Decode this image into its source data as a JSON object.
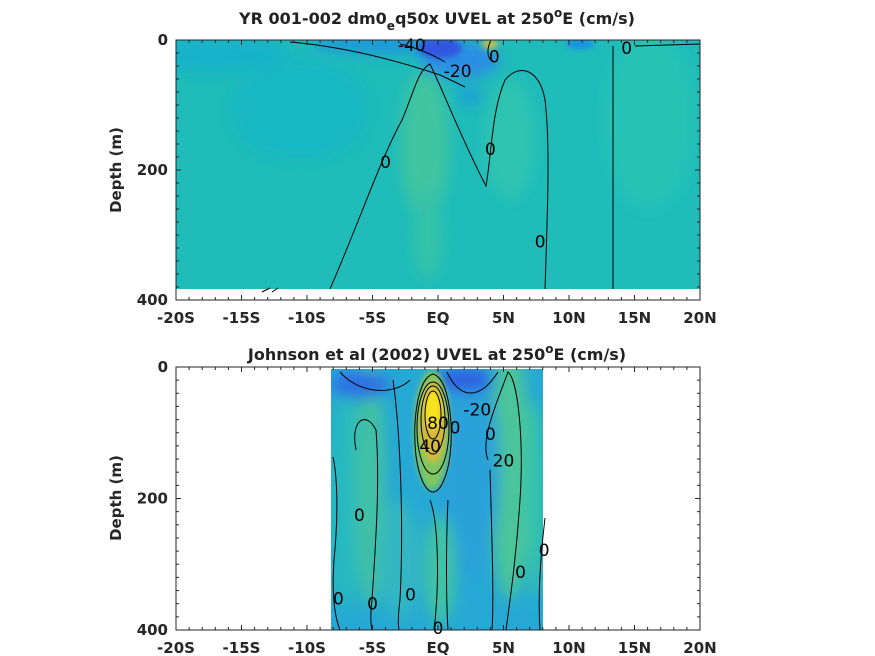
{
  "chart_data": [
    {
      "type": "heatmap",
      "title": {
        "pre": "YR 001-002 dm0",
        "sub": "e",
        "mid": "q50x UVEL at 250",
        "sup": "o",
        "post": "E (cm/s)"
      },
      "ylabel": "Depth (m)",
      "x_ticks": [
        "-20S",
        "-15S",
        "-10S",
        "-5S",
        "EQ",
        "5N",
        "10N",
        "15N",
        "20N"
      ],
      "x_tick_values": [
        -20,
        -15,
        -10,
        -5,
        0,
        5,
        10,
        15,
        20
      ],
      "y_ticks": [
        "0",
        "200",
        "400"
      ],
      "y_tick_values": [
        0,
        200,
        400
      ],
      "xlim": [
        -20,
        20
      ],
      "ylim": [
        0,
        400
      ],
      "y_reversed": true,
      "colormap": "parula",
      "color_range": [
        -60,
        90
      ],
      "data_extent": {
        "x": [
          -20,
          20
        ],
        "y": [
          0,
          380
        ]
      },
      "contour_labels": [
        {
          "text": "-40",
          "x": -2.0,
          "y": 8
        },
        {
          "text": "-20",
          "x": 1.5,
          "y": 48
        },
        {
          "text": "0",
          "x": 4.3,
          "y": 25
        },
        {
          "text": "0",
          "x": 14.4,
          "y": 12
        },
        {
          "text": "0",
          "x": -4.0,
          "y": 188
        },
        {
          "text": "0",
          "x": 4.0,
          "y": 168
        },
        {
          "text": "0",
          "x": 7.8,
          "y": 310
        }
      ]
    },
    {
      "type": "heatmap",
      "title": {
        "pre": "Johnson et al (2002) UVEL at 250",
        "sup": "o",
        "post": "E (cm/s)"
      },
      "ylabel": "Depth (m)",
      "x_ticks": [
        "-20S",
        "-15S",
        "-10S",
        "-5S",
        "EQ",
        "5N",
        "10N",
        "15N",
        "20N"
      ],
      "x_tick_values": [
        -20,
        -15,
        -10,
        -5,
        0,
        5,
        10,
        15,
        20
      ],
      "y_ticks": [
        "0",
        "200",
        "400"
      ],
      "y_tick_values": [
        0,
        200,
        400
      ],
      "xlim": [
        -20,
        20
      ],
      "ylim": [
        0,
        400
      ],
      "y_reversed": true,
      "colormap": "parula",
      "color_range": [
        -60,
        90
      ],
      "data_extent": {
        "x": [
          -8,
          8.2
        ],
        "y": [
          0,
          400
        ]
      },
      "contour_labels": [
        {
          "text": "80",
          "x": 0.0,
          "y": 85
        },
        {
          "text": "40",
          "x": -0.6,
          "y": 120
        },
        {
          "text": "-20",
          "x": 3.0,
          "y": 65
        },
        {
          "text": "0",
          "x": 1.3,
          "y": 92
        },
        {
          "text": "0",
          "x": 4.0,
          "y": 102
        },
        {
          "text": "20",
          "x": 5.0,
          "y": 142
        },
        {
          "text": "0",
          "x": -6.0,
          "y": 225
        },
        {
          "text": "0",
          "x": 8.1,
          "y": 278
        },
        {
          "text": "0",
          "x": 6.3,
          "y": 312
        },
        {
          "text": "0",
          "x": -7.6,
          "y": 352
        },
        {
          "text": "0",
          "x": -5.0,
          "y": 360
        },
        {
          "text": "0",
          "x": -2.1,
          "y": 346
        },
        {
          "text": "0",
          "x": 0.0,
          "y": 397
        }
      ]
    }
  ]
}
